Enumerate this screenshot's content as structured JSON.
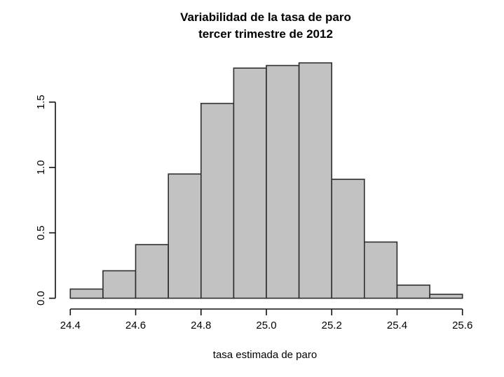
{
  "chart_data": {
    "type": "bar",
    "subtype": "histogram",
    "title_line1": "Variabilidad de la tasa de paro",
    "title_line2": "tercer trimestre de 2012",
    "xlabel": "tasa estimada de paro",
    "ylabel": "",
    "bin_start": 24.4,
    "bin_width": 0.1,
    "bin_edges": [
      24.4,
      24.5,
      24.6,
      24.7,
      24.8,
      24.9,
      25.0,
      25.1,
      25.2,
      25.3,
      25.4,
      25.5,
      25.6
    ],
    "densities": [
      0.07,
      0.21,
      0.41,
      0.95,
      1.49,
      1.76,
      1.78,
      1.8,
      0.91,
      0.43,
      0.1,
      0.03
    ],
    "xlim": [
      24.4,
      25.6
    ],
    "ylim": [
      0,
      1.8
    ],
    "x_ticks": [
      24.4,
      24.6,
      24.8,
      25.0,
      25.2,
      25.4,
      25.6
    ],
    "x_tick_labels": [
      "24.4",
      "24.6",
      "24.8",
      "25.0",
      "25.2",
      "25.4",
      "25.6"
    ],
    "y_ticks": [
      0.0,
      0.5,
      1.0,
      1.5
    ],
    "y_tick_labels": [
      "0.0",
      "0.5",
      "1.0",
      "1.5"
    ],
    "grid": false,
    "legend": "none",
    "colors": {
      "background": "#ffffff",
      "bar_fill": "#c2c2c2",
      "bar_border": "#2e2e2e",
      "axis": "#111111",
      "text": "#000000"
    }
  }
}
